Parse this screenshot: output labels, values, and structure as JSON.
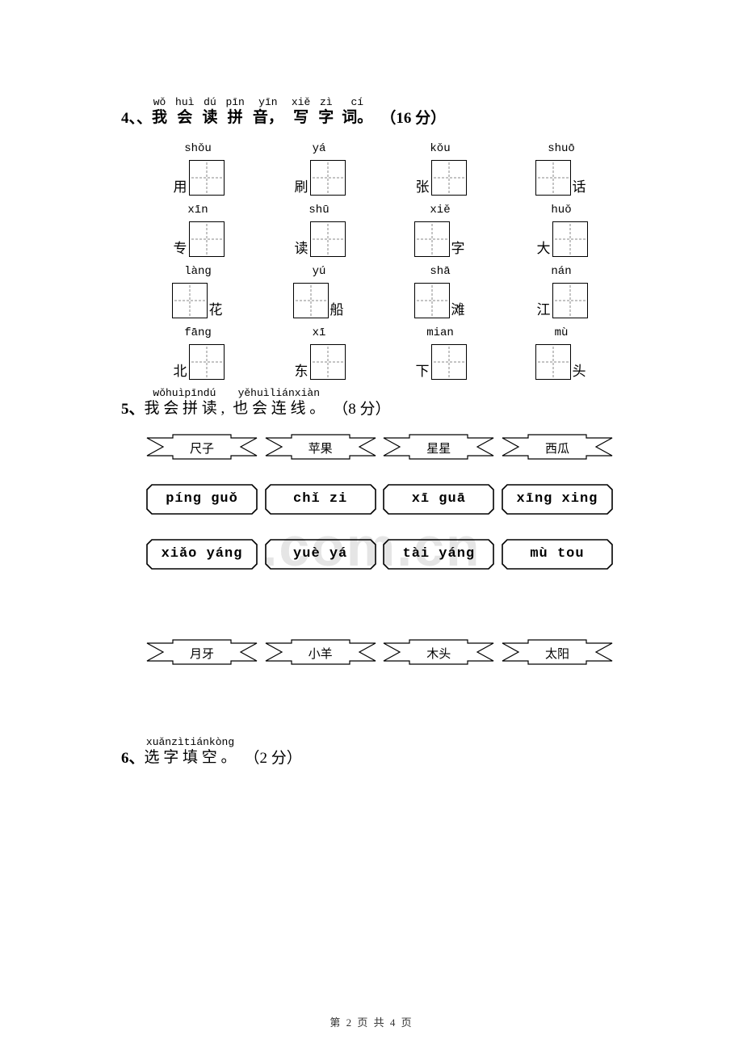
{
  "watermark": ".com.cn",
  "footer": "第 2 页 共 4 页",
  "q4": {
    "num": "4、、",
    "title_anno": [
      {
        "py": "wǒ",
        "hz": "我"
      },
      {
        "py": "huì",
        "hz": "会"
      },
      {
        "py": "dú",
        "hz": "读"
      },
      {
        "py": "pīn",
        "hz": "拼"
      },
      {
        "py": "yīn",
        "hz": "音，"
      },
      {
        "py": "xiě",
        "hz": "写"
      },
      {
        "py": "zì",
        "hz": "字"
      },
      {
        "py": "cí",
        "hz": "词。"
      }
    ],
    "points": "（16 分）",
    "rows": [
      [
        {
          "py": "shǒu",
          "pre": "用",
          "suf": ""
        },
        {
          "py": "yá",
          "pre": "刷",
          "suf": ""
        },
        {
          "py": "kǒu",
          "pre": "张",
          "suf": ""
        },
        {
          "py": "shuō",
          "pre": "",
          "suf": "话"
        }
      ],
      [
        {
          "py": "xīn",
          "pre": "专",
          "suf": ""
        },
        {
          "py": "shū",
          "pre": "读",
          "suf": ""
        },
        {
          "py": "xiě",
          "pre": "",
          "suf": "字"
        },
        {
          "py": "huǒ",
          "pre": "大",
          "suf": ""
        }
      ],
      [
        {
          "py": "làng",
          "pre": "",
          "suf": "花"
        },
        {
          "py": "yú",
          "pre": "",
          "suf": "船"
        },
        {
          "py": "shā",
          "pre": "",
          "suf": "滩"
        },
        {
          "py": "nán",
          "pre": "江",
          "suf": ""
        }
      ],
      [
        {
          "py": "fāng",
          "pre": "北",
          "suf": ""
        },
        {
          "py": "xī",
          "pre": "东",
          "suf": ""
        },
        {
          "py": "mian",
          "pre": "下",
          "suf": ""
        },
        {
          "py": "mù",
          "pre": "",
          "suf": "头"
        }
      ]
    ]
  },
  "q5": {
    "num": "5、",
    "title_anno": [
      {
        "py": "wǒhuìpīndú",
        "hz": "我 会 拼 读 ,"
      },
      {
        "py": "yěhuìliánxiàn",
        "hz": "也 会 连 线 。"
      }
    ],
    "points": "（8 分）",
    "banner_top": [
      "尺子",
      "苹果",
      "星星",
      "西瓜"
    ],
    "pinyin_row1": [
      "píng guǒ",
      "chǐ  zi",
      "xī  guā",
      "xīng xing"
    ],
    "pinyin_row2": [
      "xiǎo yáng",
      "yuè  yá",
      "tài yáng",
      "mù   tou"
    ],
    "banner_bottom": [
      "月牙",
      "小羊",
      "木头",
      "太阳"
    ]
  },
  "q6": {
    "num": "6、",
    "title_anno": [
      {
        "py": "xuǎnzìtiánkòng",
        "hz": "选 字 填   空 。"
      }
    ],
    "points": "（2 分）"
  }
}
